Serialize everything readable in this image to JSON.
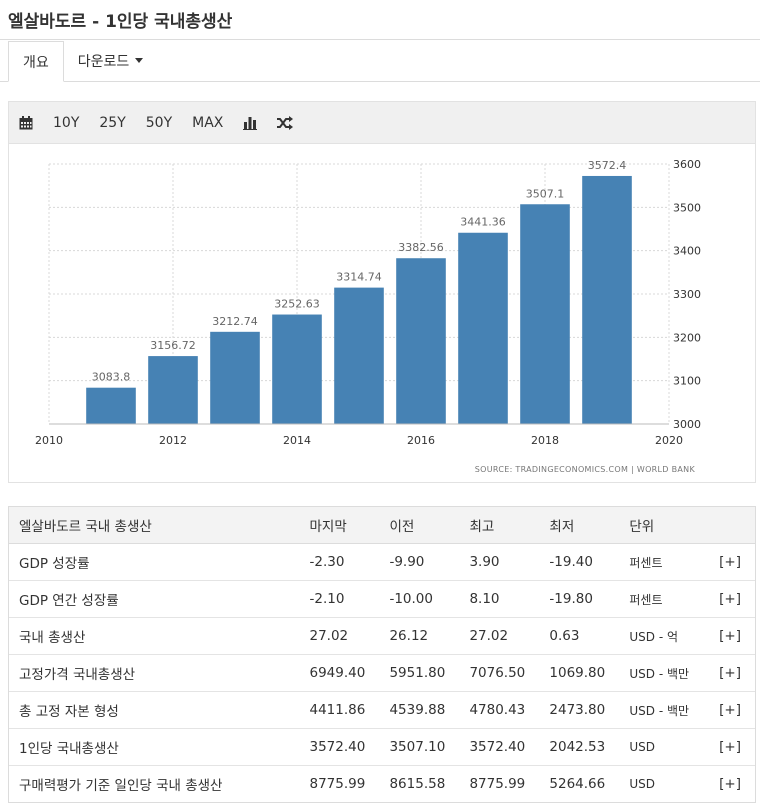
{
  "page": {
    "title": "엘살바도르 - 1인당 국내총생산",
    "tabs": [
      {
        "label": "개요",
        "active": true
      },
      {
        "label": "다운로드",
        "dropdown": true
      }
    ]
  },
  "toolbar": {
    "calendar_icon": "calendar-icon",
    "ranges": [
      "10Y",
      "25Y",
      "50Y",
      "MAX"
    ],
    "bar_icon": "bar-chart-icon",
    "shuffle_icon": "shuffle-icon"
  },
  "chart_data": {
    "type": "bar",
    "x": [
      2011,
      2012,
      2013,
      2014,
      2015,
      2016,
      2017,
      2018,
      2019
    ],
    "values": [
      3083.8,
      3156.72,
      3212.74,
      3252.63,
      3314.74,
      3382.56,
      3441.36,
      3507.1,
      3572.4
    ],
    "value_labels": [
      "3083.8",
      "3156.72",
      "3212.74",
      "3252.63",
      "3314.74",
      "3382.56",
      "3441.36",
      "3507.1",
      "3572.4"
    ],
    "xlim": [
      2010,
      2020
    ],
    "x_ticks": [
      "2010",
      "2012",
      "2014",
      "2016",
      "2018",
      "2020"
    ],
    "ylim": [
      3000,
      3600
    ],
    "y_ticks": [
      "3000",
      "3100",
      "3200",
      "3300",
      "3400",
      "3500",
      "3600"
    ],
    "y_axis_side": "right",
    "grid": true,
    "bar_color": "#4682b4",
    "source": "SOURCE: TRADINGECONOMICS.COM  |  WORLD BANK"
  },
  "table": {
    "headers": [
      "엘살바도르 국내 총생산",
      "마지막",
      "이전",
      "최고",
      "최저",
      "단위",
      ""
    ],
    "rows": [
      {
        "name": "GDP 성장률",
        "last": "-2.30",
        "prev": "-9.90",
        "high": "3.90",
        "low": "-19.40",
        "unit": "퍼센트",
        "more": "[+]"
      },
      {
        "name": "GDP 연간 성장률",
        "last": "-2.10",
        "prev": "-10.00",
        "high": "8.10",
        "low": "-19.80",
        "unit": "퍼센트",
        "more": "[+]"
      },
      {
        "name": "국내 총생산",
        "last": "27.02",
        "prev": "26.12",
        "high": "27.02",
        "low": "0.63",
        "unit": "USD - 억",
        "more": "[+]"
      },
      {
        "name": "고정가격 국내총생산",
        "last": "6949.40",
        "prev": "5951.80",
        "high": "7076.50",
        "low": "1069.80",
        "unit": "USD - 백만",
        "more": "[+]"
      },
      {
        "name": "총 고정 자본 형성",
        "last": "4411.86",
        "prev": "4539.88",
        "high": "4780.43",
        "low": "2473.80",
        "unit": "USD - 백만",
        "more": "[+]"
      },
      {
        "name": "1인당 국내총생산",
        "last": "3572.40",
        "prev": "3507.10",
        "high": "3572.40",
        "low": "2042.53",
        "unit": "USD",
        "more": "[+]"
      },
      {
        "name": "구매력평가 기준 일인당 국내 총생산",
        "last": "8775.99",
        "prev": "8615.58",
        "high": "8775.99",
        "low": "5264.66",
        "unit": "USD",
        "more": "[+]"
      }
    ]
  }
}
